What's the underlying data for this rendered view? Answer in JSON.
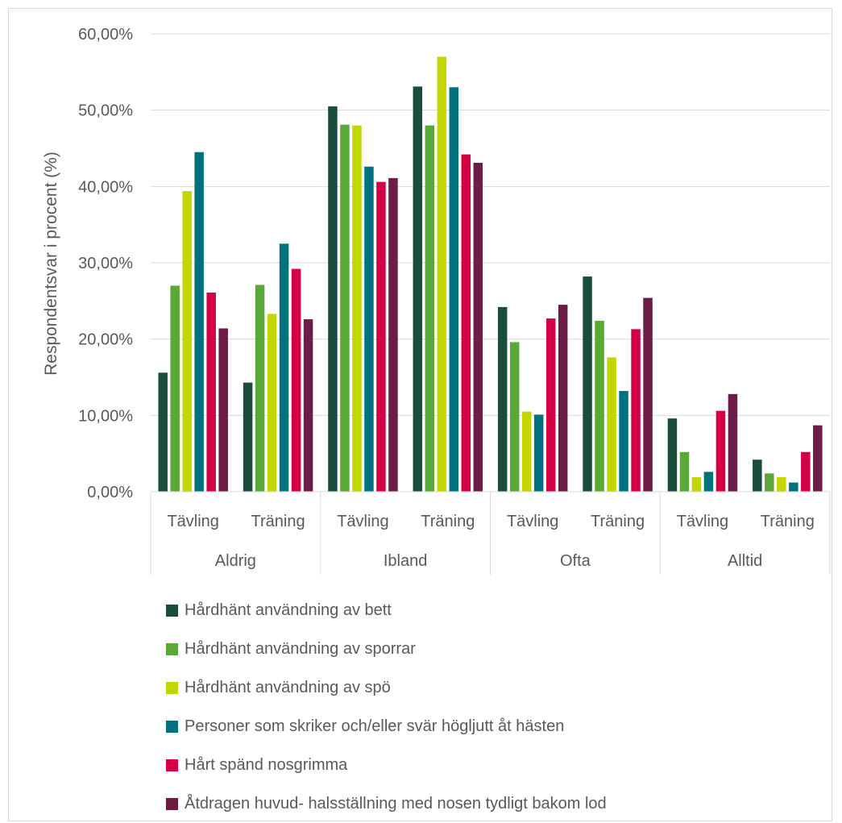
{
  "chart_data": {
    "type": "bar",
    "ylabel": "Respondentsvar i procent (%)",
    "ylim": [
      0,
      60
    ],
    "yticks": [
      "0,00%",
      "10,00%",
      "20,00%",
      "30,00%",
      "40,00%",
      "50,00%",
      "60,00%"
    ],
    "grid": true,
    "legend_position": "bottom",
    "groups": [
      "Aldrig",
      "Ibland",
      "Ofta",
      "Alltid"
    ],
    "subcategories": [
      "Tävling",
      "Träning"
    ],
    "series": [
      {
        "name": "Hårdhänt användning av bett",
        "color": "#1b4d3e",
        "values": [
          15.6,
          14.3,
          50.5,
          53.1,
          24.2,
          28.2,
          9.6,
          4.2
        ]
      },
      {
        "name": "Hårdhänt användning av sporrar",
        "color": "#5aa837",
        "values": [
          27.0,
          27.1,
          48.1,
          48.0,
          19.6,
          22.4,
          5.2,
          2.4
        ]
      },
      {
        "name": "Hårdhänt användning av spö",
        "color": "#c3d600",
        "values": [
          39.4,
          23.3,
          48.0,
          57.0,
          10.5,
          17.6,
          1.9,
          1.9
        ]
      },
      {
        "name": "Personer som skriker och/eller svär högljutt åt hästen",
        "color": "#00727f",
        "values": [
          44.5,
          32.5,
          42.6,
          53.0,
          10.1,
          13.2,
          2.6,
          1.2
        ]
      },
      {
        "name": "Hårt spänd nosgrimma",
        "color": "#d40045",
        "values": [
          26.1,
          29.2,
          40.6,
          44.2,
          22.7,
          21.3,
          10.6,
          5.2
        ]
      },
      {
        "name": "Åtdragen huvud- halsställning med nosen tydligt bakom lod",
        "color": "#6b1d47",
        "values": [
          21.4,
          22.6,
          41.1,
          43.1,
          24.5,
          25.4,
          12.8,
          8.7
        ]
      }
    ]
  }
}
